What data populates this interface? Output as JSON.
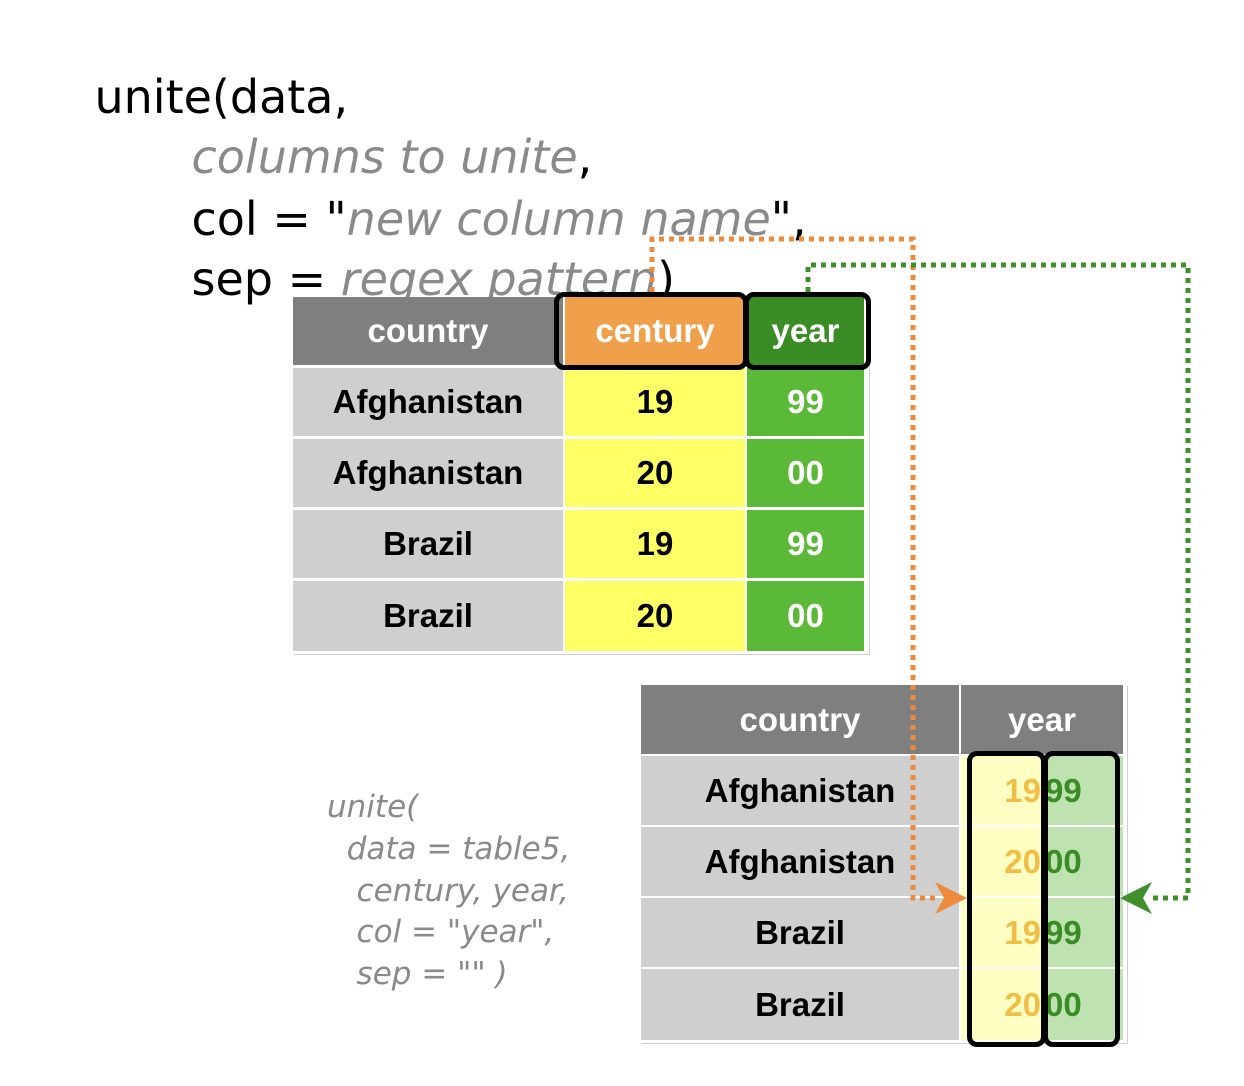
{
  "signature": {
    "fn_open": "unite(data,",
    "cols_placeholder": "columns to unite",
    "cols_comma": ",",
    "col_prefix": "col = \"",
    "col_placeholder": "new column name",
    "col_suffix": "\",",
    "sep_prefix": "sep = ",
    "sep_placeholder": "regex pattern",
    "sep_suffix": ")"
  },
  "input_table": {
    "headers": [
      "country",
      "century",
      "year"
    ],
    "rows": [
      [
        "Afghanistan",
        "19",
        "99"
      ],
      [
        "Afghanistan",
        "20",
        "00"
      ],
      [
        "Brazil",
        "19",
        "99"
      ],
      [
        "Brazil",
        "20",
        "00"
      ]
    ]
  },
  "output_table": {
    "headers": [
      "country",
      "year"
    ],
    "rows": [
      {
        "country": "Afghanistan",
        "century": "19",
        "year": "99"
      },
      {
        "country": "Afghanistan",
        "century": "20",
        "year": "00"
      },
      {
        "country": "Brazil",
        "century": "19",
        "year": "99"
      },
      {
        "country": "Brazil",
        "century": "20",
        "year": "00"
      }
    ]
  },
  "example_code": {
    "lines": [
      "unite(",
      "  data = table5,",
      "   century, year,",
      "   col = \"year\",",
      "   sep = \"\" )"
    ]
  },
  "colors": {
    "century_accent": "#f0a04b",
    "year_accent": "#3a8c24",
    "arrow_orange": "#ee8a3c",
    "arrow_green": "#3f8f2a",
    "output_century_text": "#f2bd45",
    "output_year_text": "#3a8c24"
  }
}
